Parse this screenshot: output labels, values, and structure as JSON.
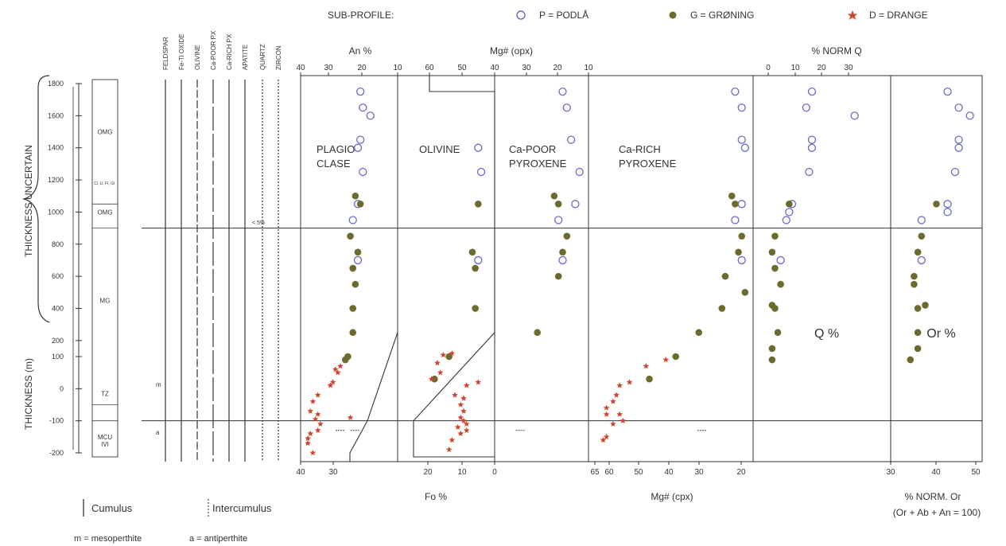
{
  "chart_data": {
    "type": "scatter",
    "legend": {
      "title": "SUB-PROFILE:",
      "placement": "top",
      "entries": [
        {
          "symbol": "open-circle",
          "label": "P = PODLÅ",
          "color": "#6a6ac8"
        },
        {
          "symbol": "filled-circle",
          "label": "G = GRØNING",
          "color": "#6e6a2e"
        },
        {
          "symbol": "star",
          "label": "D = DRANGE",
          "color": "#d0452e"
        }
      ]
    },
    "y_axis": {
      "label": "THICKNESS (m)",
      "upper_label": "THICKNESS UNCERTAIN",
      "ticks": [
        "1800",
        "1600",
        "1400",
        "1200",
        "1000",
        "800",
        "600",
        "400",
        "200",
        "100",
        "0",
        "-100",
        "-200"
      ]
    },
    "strat_column": {
      "units": [
        "OMG",
        "OMG",
        "MG",
        "TZ",
        "MCU\nIVI"
      ],
      "note": "Cl, Ll, Fl, Gl"
    },
    "mineral_columns": {
      "labels": [
        "FELDSPAR",
        "Fe-Ti OXIDE",
        "OLIVINE",
        "Ca-POOR PX",
        "Ca-RICH PX",
        "APATITE",
        "QUARTZ",
        "ZIRCON"
      ],
      "annotation": "< 5%",
      "marks_m": "m",
      "marks_a": "a"
    },
    "panels": [
      {
        "name": "PLAGIOCLASE",
        "label_lines": [
          "PLAGIO-",
          "CLASE"
        ],
        "axis_top_title": "An %",
        "axis_top_ticks": [
          "40",
          "30",
          "20",
          "10"
        ],
        "axis_bottom_ticks": [
          "40",
          "30"
        ],
        "x_domain": [
          40,
          5
        ],
        "podla": [
          [
            18,
            1750
          ],
          [
            17,
            1650
          ],
          [
            14,
            1600
          ],
          [
            18,
            1450
          ],
          [
            19,
            1400
          ],
          [
            17,
            1250
          ],
          [
            19,
            1050
          ],
          [
            21,
            950
          ],
          [
            19,
            700
          ]
        ],
        "groning": [
          [
            20,
            1100
          ],
          [
            18,
            1050
          ],
          [
            22,
            850
          ],
          [
            19,
            750
          ],
          [
            21,
            650
          ],
          [
            20,
            550
          ],
          [
            21,
            400
          ],
          [
            21,
            250
          ],
          [
            23,
            100
          ],
          [
            24,
            90
          ]
        ],
        "drange": [
          [
            26,
            70
          ],
          [
            28,
            60
          ],
          [
            27,
            50
          ],
          [
            29,
            20
          ],
          [
            30,
            10
          ],
          [
            35,
            -20
          ],
          [
            37,
            -40
          ],
          [
            38,
            -70
          ],
          [
            35,
            -80
          ],
          [
            36,
            -95
          ],
          [
            34,
            -110
          ],
          [
            22,
            -90
          ],
          [
            35,
            -130
          ],
          [
            38,
            -140
          ],
          [
            39,
            -155
          ],
          [
            39,
            -170
          ],
          [
            37,
            -200
          ]
        ],
        "range_ticks": [
          [
            26,
            -130
          ],
          [
            20,
            -130
          ]
        ]
      },
      {
        "name": "OLIVINE",
        "label_lines": [
          "OLIVINE"
        ],
        "axis_top_title": "Mg# (opx)",
        "axis_top_ticks": [
          "60",
          "50",
          "40"
        ],
        "axis_bottom_title": "Fo %",
        "axis_bottom_ticks": [
          "20",
          "10",
          "0"
        ],
        "x_domain": [
          30,
          0
        ],
        "podla": [
          [
            4,
            1400
          ],
          [
            3,
            1250
          ],
          [
            4,
            700
          ]
        ],
        "groning": [
          [
            4,
            1050
          ],
          [
            6,
            750
          ],
          [
            5,
            650
          ],
          [
            5,
            400
          ],
          [
            14,
            100
          ],
          [
            19,
            30
          ]
        ],
        "drange": [
          [
            13,
            120
          ],
          [
            16,
            110
          ],
          [
            18,
            80
          ],
          [
            17,
            50
          ],
          [
            20,
            30
          ],
          [
            8,
            10
          ],
          [
            4,
            20
          ],
          [
            12,
            -20
          ],
          [
            9,
            -30
          ],
          [
            10,
            -50
          ],
          [
            9,
            -70
          ],
          [
            10,
            -90
          ],
          [
            9,
            -100
          ],
          [
            8,
            -110
          ],
          [
            11,
            -120
          ],
          [
            8,
            -130
          ],
          [
            10,
            -140
          ],
          [
            13,
            -160
          ],
          [
            14,
            -190
          ]
        ]
      },
      {
        "name": "Ca-POOR PYROXENE",
        "label_lines": [
          "Ca-POOR",
          "PYROXENE"
        ],
        "axis_top_ticks": [
          "30",
          "20",
          "10"
        ],
        "x_domain": [
          30,
          10
        ],
        "podla": [
          [
            15,
            1750
          ],
          [
            14,
            1650
          ],
          [
            13,
            1450
          ],
          [
            11,
            1250
          ],
          [
            12,
            1050
          ],
          [
            16,
            950
          ],
          [
            15,
            700
          ]
        ],
        "groning": [
          [
            17,
            1100
          ],
          [
            16,
            1050
          ],
          [
            14,
            850
          ],
          [
            15,
            750
          ],
          [
            16,
            600
          ],
          [
            21,
            250
          ]
        ],
        "range_ticks": [
          [
            25,
            -130
          ]
        ]
      },
      {
        "name": "Ca-RICH PYROXENE",
        "label_lines": [
          "Ca-RICH",
          "PYROXENE"
        ],
        "axis_bottom_title": "Mg# (cpx)",
        "axis_bottom_ticks": [
          "65",
          "60",
          "50",
          "40",
          "30",
          "20"
        ],
        "x_domain": [
          67,
          20
        ],
        "podla": [
          [
            24,
            1750
          ],
          [
            22,
            1650
          ],
          [
            22,
            1450
          ],
          [
            21,
            1400
          ],
          [
            22,
            1050
          ],
          [
            24,
            950
          ],
          [
            22,
            700
          ]
        ],
        "groning": [
          [
            25,
            1100
          ],
          [
            24,
            1050
          ],
          [
            22,
            850
          ],
          [
            23,
            750
          ],
          [
            27,
            600
          ],
          [
            21,
            500
          ],
          [
            28,
            400
          ],
          [
            35,
            250
          ],
          [
            42,
            100
          ],
          [
            50,
            30
          ]
        ],
        "drange": [
          [
            45,
            90
          ],
          [
            51,
            70
          ],
          [
            56,
            20
          ],
          [
            59,
            10
          ],
          [
            60,
            -20
          ],
          [
            61,
            -40
          ],
          [
            63,
            -60
          ],
          [
            59,
            -80
          ],
          [
            63,
            -80
          ],
          [
            58,
            -100
          ],
          [
            61,
            -110
          ],
          [
            63,
            -150
          ],
          [
            64,
            -160
          ]
        ],
        "range_ticks": [
          [
            34,
            -130
          ]
        ]
      },
      {
        "name": "% NORM Q",
        "axis_top_title": "% NORM Q",
        "axis_top_ticks": [
          "0",
          "10",
          "20",
          "30"
        ],
        "x_domain": [
          -5,
          40
        ],
        "inner_label": "Q %",
        "podla": [
          [
            14,
            1750
          ],
          [
            12,
            1650
          ],
          [
            29,
            1600
          ],
          [
            14,
            1450
          ],
          [
            14,
            1400
          ],
          [
            13,
            1250
          ],
          [
            7,
            1050
          ],
          [
            6,
            1000
          ],
          [
            5,
            950
          ],
          [
            3,
            700
          ]
        ],
        "groning": [
          [
            6,
            1050
          ],
          [
            1,
            850
          ],
          [
            0,
            750
          ],
          [
            1,
            650
          ],
          [
            3,
            550
          ],
          [
            0,
            420
          ],
          [
            1,
            400
          ],
          [
            2,
            250
          ],
          [
            0,
            150
          ],
          [
            0,
            90
          ]
        ]
      },
      {
        "name": "% NORM Or",
        "axis_bottom_title": "% NORM. Or",
        "axis_bottom_subtitle": "(Or + Ab + An = 100)",
        "axis_bottom_ticks": [
          "30",
          "40",
          "50"
        ],
        "x_domain": [
          29,
          51
        ],
        "inner_label": "Or %",
        "podla": [
          [
            43,
            1750
          ],
          [
            46,
            1650
          ],
          [
            49,
            1600
          ],
          [
            46,
            1450
          ],
          [
            46,
            1400
          ],
          [
            45,
            1250
          ],
          [
            43,
            1050
          ],
          [
            43,
            1000
          ],
          [
            36,
            950
          ],
          [
            36,
            700
          ]
        ],
        "groning": [
          [
            40,
            1050
          ],
          [
            36,
            850
          ],
          [
            35,
            750
          ],
          [
            34,
            600
          ],
          [
            34,
            550
          ],
          [
            37,
            420
          ],
          [
            35,
            400
          ],
          [
            35,
            250
          ],
          [
            35,
            150
          ],
          [
            33,
            90
          ]
        ]
      }
    ],
    "horizontal_lines_m": [
      900,
      -100
    ]
  },
  "legend_bottom": {
    "cumulus": "Cumulus",
    "intercumulus": "Intercumulus",
    "m_note": "m = mesoperthite",
    "a_note": "a = antiperthite"
  }
}
